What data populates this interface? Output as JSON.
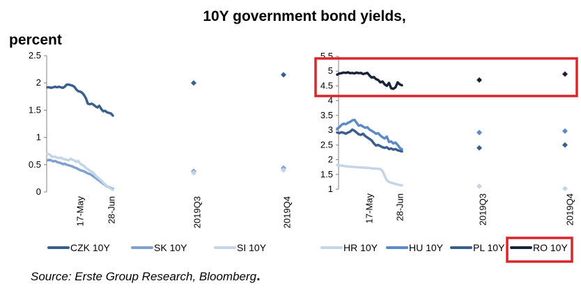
{
  "title": "10Y government bond yields,",
  "unit_label": "percent",
  "source": "Source: Erste Group Research, Bloomberg",
  "source_end": ".",
  "chart_data": [
    {
      "type": "line",
      "title": "",
      "ylim": [
        0,
        2.5
      ],
      "yticks": [
        "0",
        "0.5",
        "1",
        "1.5",
        "2",
        "2.5"
      ],
      "x_labels": [
        "17-May",
        "28-Jun",
        "2019Q3",
        "2019Q4"
      ],
      "series": [
        {
          "name": "CZK 10Y",
          "color": "#3A5F8F",
          "width": 3.5,
          "values": [
            1.92,
            1.92,
            1.91,
            1.92,
            1.93,
            1.92,
            1.93,
            1.92,
            1.91,
            1.93,
            1.97,
            1.97,
            1.96,
            1.95,
            1.93,
            1.88,
            1.85,
            1.84,
            1.82,
            1.78,
            1.72,
            1.62,
            1.61,
            1.62,
            1.6,
            1.57,
            1.55,
            1.58,
            1.52,
            1.48,
            1.49,
            1.46,
            1.45,
            1.44,
            1.4
          ],
          "forecasts": [
            2.0,
            2.15
          ]
        },
        {
          "name": "SK 10Y",
          "color": "#7FA1CF",
          "width": 3.5,
          "values": [
            0.58,
            0.59,
            0.58,
            0.56,
            0.57,
            0.55,
            0.54,
            0.53,
            0.51,
            0.52,
            0.5,
            0.49,
            0.48,
            0.47,
            0.45,
            0.44,
            0.42,
            0.4,
            0.39,
            0.38,
            0.36,
            0.34,
            0.33,
            0.31,
            0.28,
            0.26,
            0.23,
            0.21,
            0.18,
            0.15,
            0.13,
            0.1,
            0.09,
            0.07,
            0.06
          ],
          "forecasts": [
            0.38,
            0.44
          ]
        },
        {
          "name": "SI 10Y",
          "color": "#C4D5EA",
          "width": 3.5,
          "values": [
            0.7,
            0.69,
            0.66,
            0.64,
            0.65,
            0.63,
            0.62,
            0.63,
            0.61,
            0.6,
            0.59,
            0.58,
            0.61,
            0.59,
            0.58,
            0.55,
            0.57,
            0.52,
            0.5,
            0.48,
            0.44,
            0.42,
            0.39,
            0.37,
            0.35,
            0.3,
            0.27,
            0.24,
            0.21,
            0.17,
            0.14,
            0.11,
            0.08,
            0.06,
            0.04
          ],
          "forecasts": [
            0.35,
            0.4
          ]
        }
      ]
    },
    {
      "type": "line",
      "title": "",
      "ylim": [
        1,
        5.5
      ],
      "yticks": [
        "1",
        "1.5",
        "2",
        "2.5",
        "3",
        "3.5",
        "4",
        "4.5",
        "5",
        "5.5"
      ],
      "x_labels": [
        "17-May",
        "28-Jun",
        "2019Q3",
        "2019Q4"
      ],
      "series": [
        {
          "name": "HR 10Y",
          "color": "#C4D5EA",
          "width": 3.5,
          "values": [
            1.82,
            1.8,
            1.8,
            1.79,
            1.78,
            1.77,
            1.76,
            1.76,
            1.75,
            1.75,
            1.74,
            1.74,
            1.73,
            1.73,
            1.72,
            1.72,
            1.7,
            1.7,
            1.7,
            1.69,
            1.68,
            1.62,
            1.45,
            1.3,
            1.25,
            1.22,
            1.2,
            1.18,
            1.16,
            1.14,
            1.13
          ],
          "forecasts": [
            1.1,
            1.02
          ]
        },
        {
          "name": "HU 10Y",
          "color": "#5B8AC6",
          "width": 3.5,
          "values": [
            3.05,
            3.1,
            3.18,
            3.22,
            3.2,
            3.25,
            3.28,
            3.33,
            3.35,
            3.25,
            3.15,
            3.17,
            3.12,
            3.08,
            3.1,
            3.02,
            2.98,
            2.93,
            2.88,
            2.9,
            2.82,
            2.76,
            2.72,
            2.78,
            2.6,
            2.62,
            2.55,
            2.58,
            2.5,
            2.4,
            2.35
          ],
          "forecasts": [
            2.92,
            2.97
          ]
        },
        {
          "name": "PL 10Y",
          "color": "#3A5F8F",
          "width": 3.5,
          "values": [
            2.92,
            2.9,
            2.93,
            2.91,
            2.88,
            2.92,
            2.95,
            3.02,
            2.98,
            2.92,
            2.86,
            2.84,
            2.88,
            2.8,
            2.75,
            2.7,
            2.65,
            2.55,
            2.48,
            2.5,
            2.46,
            2.42,
            2.4,
            2.42,
            2.36,
            2.38,
            2.34,
            2.36,
            2.32,
            2.3,
            2.28
          ],
          "forecasts": [
            2.4,
            2.5
          ]
        },
        {
          "name": "RO 10Y",
          "color": "#17243A",
          "width": 3.5,
          "values": [
            4.88,
            4.92,
            4.93,
            4.95,
            4.94,
            4.96,
            4.93,
            4.94,
            4.92,
            4.95,
            4.93,
            4.94,
            4.9,
            4.92,
            4.94,
            4.85,
            4.78,
            4.8,
            4.73,
            4.7,
            4.62,
            4.65,
            4.55,
            4.5,
            4.6,
            4.42,
            4.4,
            4.45,
            4.62,
            4.55,
            4.52
          ],
          "forecasts": [
            4.7,
            4.9
          ]
        }
      ]
    }
  ]
}
